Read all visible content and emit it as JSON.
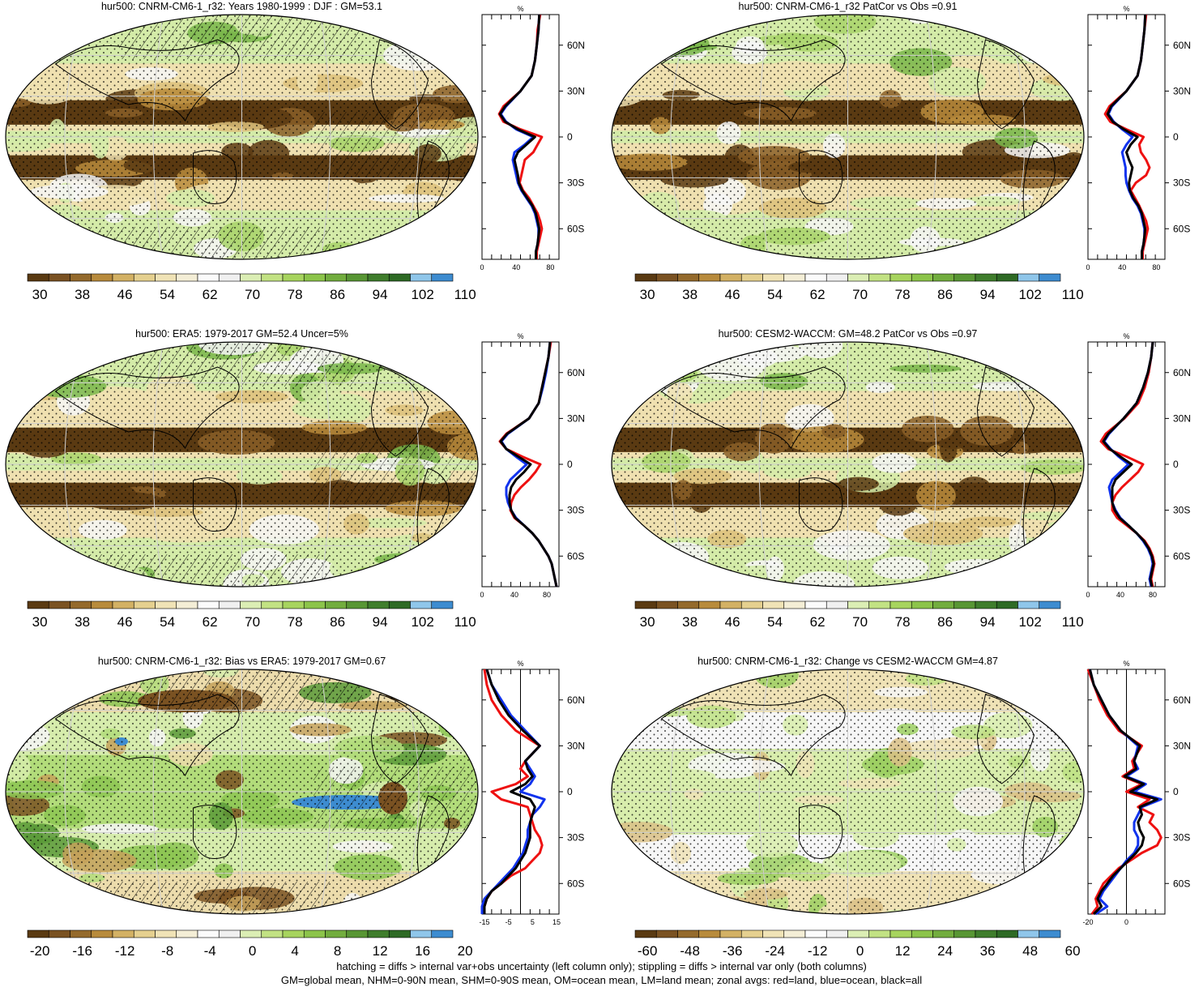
{
  "figure": {
    "footnote_line1": "hatching = diffs > internal var+obs uncertainty (left column only); stippling = diffs > internal var only (both columns)",
    "footnote_line2": "GM=global mean, NHM=0-90N mean, SHM=0-90S mean, OM=ocean mean, LM=land mean; zonal avgs: red=land, blue=ocean, black=all",
    "zonal_colors": {
      "land": "#ee1111",
      "ocean": "#1133ee",
      "all": "#000000"
    }
  },
  "chart_data": [
    {
      "type": "heatmap",
      "title": "hur500: CNRM-CM6-1_r32: Years 1980-1999 : DJF : GM=53.1",
      "colorbar": {
        "ticks": [
          "30",
          "38",
          "46",
          "54",
          "62",
          "70",
          "78",
          "86",
          "94",
          "102",
          "110"
        ],
        "colors": [
          "#5a3a12",
          "#7a5222",
          "#946a2c",
          "#b88b3c",
          "#d3b164",
          "#e5d08f",
          "#f0e3b6",
          "#f4eed6",
          "#fbfbfb",
          "#f0f0f0",
          "#dbeeb4",
          "#c2e283",
          "#a7d45e",
          "#8cc44a",
          "#72ad3e",
          "#589634",
          "#3f7d2c",
          "#2e6a25",
          "#8fc6ea",
          "#3d8cd0"
        ]
      },
      "zonal": {
        "unit": "%",
        "xticks": [
          "0",
          "40",
          "80"
        ],
        "xlim": [
          0,
          90
        ],
        "yticks": [
          "60N",
          "30N",
          "0",
          "30S",
          "60S"
        ],
        "ref_line": false,
        "lat": [
          80,
          70,
          60,
          50,
          40,
          30,
          20,
          15,
          10,
          5,
          0,
          -5,
          -10,
          -15,
          -20,
          -25,
          -30,
          -35,
          -40,
          -45,
          -50,
          -55,
          -60,
          -65,
          -70,
          -75,
          -80
        ],
        "land": [
          68,
          65,
          64,
          62,
          58,
          45,
          25,
          20,
          25,
          45,
          70,
          65,
          60,
          50,
          48,
          46,
          44,
          48,
          55,
          60,
          65,
          68,
          70,
          68,
          66,
          64,
          64
        ],
        "ocean": [
          67,
          66,
          64,
          62,
          58,
          45,
          28,
          22,
          28,
          40,
          60,
          50,
          38,
          36,
          38,
          40,
          42,
          46,
          52,
          58,
          62,
          64,
          66,
          66,
          65,
          63,
          63
        ],
        "all": [
          67,
          66,
          64,
          62,
          58,
          45,
          27,
          21,
          27,
          42,
          62,
          52,
          42,
          38,
          40,
          42,
          43,
          47,
          53,
          59,
          63,
          65,
          67,
          66,
          65,
          63,
          63
        ]
      }
    },
    {
      "type": "heatmap",
      "title": "hur500: CNRM-CM6-1_r32 PatCor vs Obs =0.91",
      "colorbar": {
        "ticks": [
          "30",
          "38",
          "46",
          "54",
          "62",
          "70",
          "78",
          "86",
          "94",
          "102",
          "110"
        ],
        "colors": [
          "#5a3a12",
          "#7a5222",
          "#946a2c",
          "#b88b3c",
          "#d3b164",
          "#e5d08f",
          "#f0e3b6",
          "#f4eed6",
          "#fbfbfb",
          "#f0f0f0",
          "#dbeeb4",
          "#c2e283",
          "#a7d45e",
          "#8cc44a",
          "#72ad3e",
          "#589634",
          "#3f7d2c",
          "#2e6a25",
          "#8fc6ea",
          "#3d8cd0"
        ]
      },
      "zonal": {
        "unit": "%",
        "xticks": [
          "0",
          "40",
          "80"
        ],
        "xlim": [
          0,
          90
        ],
        "yticks": [
          "60N",
          "30N",
          "0",
          "30S",
          "60S"
        ],
        "ref_line": false,
        "lat": [
          80,
          70,
          60,
          50,
          40,
          30,
          20,
          15,
          10,
          5,
          0,
          -5,
          -10,
          -15,
          -20,
          -25,
          -30,
          -35,
          -40,
          -45,
          -50,
          -55,
          -60,
          -65,
          -70,
          -75,
          -80
        ],
        "land": [
          68,
          66,
          64,
          62,
          58,
          45,
          25,
          20,
          26,
          45,
          65,
          60,
          62,
          68,
          72,
          68,
          56,
          50,
          55,
          60,
          64,
          68,
          70,
          68,
          66,
          64,
          64
        ],
        "ocean": [
          67,
          66,
          64,
          62,
          58,
          45,
          28,
          24,
          30,
          40,
          52,
          45,
          40,
          42,
          44,
          44,
          45,
          48,
          52,
          58,
          62,
          64,
          66,
          66,
          65,
          63,
          63
        ],
        "all": [
          67,
          66,
          64,
          62,
          58,
          45,
          27,
          23,
          29,
          42,
          58,
          50,
          45,
          48,
          52,
          50,
          48,
          49,
          53,
          59,
          63,
          65,
          67,
          66,
          65,
          63,
          63
        ]
      }
    },
    {
      "type": "heatmap",
      "title": "hur500: ERA5: 1979-2017 GM=52.4 Uncer=5%",
      "colorbar": {
        "ticks": [
          "30",
          "38",
          "46",
          "54",
          "62",
          "70",
          "78",
          "86",
          "94",
          "102",
          "110"
        ],
        "colors": [
          "#5a3a12",
          "#7a5222",
          "#946a2c",
          "#b88b3c",
          "#d3b164",
          "#e5d08f",
          "#f0e3b6",
          "#f4eed6",
          "#fbfbfb",
          "#f0f0f0",
          "#dbeeb4",
          "#c2e283",
          "#a7d45e",
          "#8cc44a",
          "#72ad3e",
          "#589634",
          "#3f7d2c",
          "#2e6a25",
          "#8fc6ea",
          "#3d8cd0"
        ]
      },
      "zonal": {
        "unit": "%",
        "xticks": [
          "0",
          "40",
          "80"
        ],
        "xlim": [
          0,
          95
        ],
        "yticks": [
          "60N",
          "30N",
          "0",
          "30S",
          "60S"
        ],
        "ref_line": false,
        "lat": [
          80,
          70,
          60,
          50,
          40,
          30,
          20,
          15,
          10,
          5,
          0,
          -5,
          -10,
          -15,
          -20,
          -25,
          -30,
          -35,
          -40,
          -45,
          -50,
          -55,
          -60,
          -65,
          -70,
          -75,
          -80
        ],
        "land": [
          85,
          82,
          78,
          74,
          70,
          58,
          30,
          22,
          30,
          50,
          72,
          66,
          58,
          48,
          40,
          36,
          35,
          40,
          52,
          62,
          70,
          76,
          82,
          86,
          88,
          90,
          92
        ],
        "ocean": [
          84,
          82,
          79,
          75,
          70,
          58,
          32,
          24,
          30,
          42,
          55,
          45,
          35,
          30,
          30,
          32,
          36,
          42,
          52,
          62,
          70,
          76,
          82,
          86,
          88,
          90,
          92
        ],
        "all": [
          84,
          82,
          78,
          74,
          70,
          58,
          31,
          23,
          30,
          45,
          60,
          52,
          42,
          36,
          34,
          34,
          36,
          41,
          52,
          62,
          70,
          76,
          82,
          86,
          88,
          90,
          92
        ]
      }
    },
    {
      "type": "heatmap",
      "title": "hur500: CESM2-WACCM: GM=48.2 PatCor vs Obs =0.97",
      "colorbar": {
        "ticks": [
          "30",
          "38",
          "46",
          "54",
          "62",
          "70",
          "78",
          "86",
          "94",
          "102",
          "110"
        ],
        "colors": [
          "#5a3a12",
          "#7a5222",
          "#946a2c",
          "#b88b3c",
          "#d3b164",
          "#e5d08f",
          "#f0e3b6",
          "#f4eed6",
          "#fbfbfb",
          "#f0f0f0",
          "#dbeeb4",
          "#c2e283",
          "#a7d45e",
          "#8cc44a",
          "#72ad3e",
          "#589634",
          "#3f7d2c",
          "#2e6a25",
          "#8fc6ea",
          "#3d8cd0"
        ]
      },
      "zonal": {
        "unit": "%",
        "xticks": [
          "0",
          "40",
          "80"
        ],
        "xlim": [
          0,
          95
        ],
        "yticks": [
          "60N",
          "30N",
          "0",
          "30S",
          "60S"
        ],
        "ref_line": false,
        "lat": [
          80,
          70,
          60,
          50,
          40,
          30,
          20,
          15,
          10,
          5,
          0,
          -5,
          -10,
          -15,
          -20,
          -25,
          -30,
          -35,
          -40,
          -45,
          -50,
          -55,
          -60,
          -65,
          -70,
          -75,
          -80
        ],
        "land": [
          80,
          78,
          75,
          70,
          62,
          45,
          22,
          16,
          25,
          48,
          68,
          62,
          52,
          42,
          34,
          30,
          30,
          36,
          48,
          60,
          70,
          76,
          80,
          82,
          80,
          78,
          80
        ],
        "ocean": [
          80,
          78,
          74,
          68,
          60,
          44,
          26,
          20,
          28,
          38,
          50,
          40,
          30,
          26,
          28,
          30,
          34,
          40,
          50,
          60,
          68,
          74,
          78,
          80,
          78,
          76,
          78
        ],
        "all": [
          80,
          78,
          74,
          68,
          60,
          44,
          25,
          19,
          27,
          40,
          54,
          44,
          34,
          30,
          30,
          30,
          33,
          39,
          50,
          60,
          69,
          75,
          79,
          81,
          79,
          77,
          79
        ]
      }
    },
    {
      "type": "heatmap",
      "title": "hur500: CNRM-CM6-1_r32: Bias vs ERA5: 1979-2017 GM=0.67",
      "colorbar": {
        "ticks": [
          "-20",
          "-16",
          "-12",
          "-8",
          "-4",
          "0",
          "4",
          "8",
          "12",
          "16",
          "20"
        ],
        "colors": [
          "#5a3a12",
          "#7a5222",
          "#946a2c",
          "#b88b3c",
          "#d3b164",
          "#e5d08f",
          "#f0e3b6",
          "#f4eed6",
          "#fbfbfb",
          "#f0f0f0",
          "#dbeeb4",
          "#c2e283",
          "#a7d45e",
          "#8cc44a",
          "#72ad3e",
          "#589634",
          "#3f7d2c",
          "#2e6a25",
          "#8fc6ea",
          "#3d8cd0"
        ]
      },
      "zonal": {
        "unit": "%",
        "xticks": [
          "-15",
          "-5",
          "5",
          "15"
        ],
        "xlim": [
          -16,
          16
        ],
        "yticks": [
          "60N",
          "30N",
          "0",
          "30S",
          "60S"
        ],
        "ref_line": true,
        "lat": [
          80,
          70,
          60,
          50,
          40,
          30,
          20,
          15,
          10,
          5,
          0,
          -5,
          -10,
          -15,
          -20,
          -25,
          -30,
          -35,
          -40,
          -45,
          -50,
          -55,
          -60,
          -65,
          -70,
          -75,
          -80
        ],
        "land": [
          -15,
          -14,
          -12,
          -8,
          -2,
          8,
          2,
          0,
          3,
          -2,
          -12,
          -8,
          3,
          4,
          5,
          6,
          8,
          9,
          8,
          5,
          2,
          -4,
          -8,
          -12,
          -14,
          -15,
          -15
        ],
        "ocean": [
          -14,
          -12,
          -8,
          -4,
          2,
          8,
          2,
          4,
          6,
          4,
          0,
          10,
          8,
          5,
          4,
          3,
          3,
          2,
          1,
          -1,
          -3,
          -6,
          -9,
          -12,
          -15,
          -16,
          -16
        ],
        "all": [
          -14,
          -12,
          -9,
          -5,
          1,
          8,
          2,
          3,
          5,
          2,
          -4,
          4,
          6,
          5,
          4,
          4,
          4,
          3,
          2,
          0,
          -2,
          -5,
          -8,
          -12,
          -14,
          -15,
          -15
        ]
      }
    },
    {
      "type": "heatmap",
      "title": "hur500: CNRM-CM6-1_r32: Change vs CESM2-WACCM GM=4.87",
      "colorbar": {
        "ticks": [
          "-60",
          "-48",
          "-36",
          "-24",
          "-12",
          "0",
          "12",
          "24",
          "36",
          "48",
          "60"
        ],
        "colors": [
          "#5a3a12",
          "#7a5222",
          "#946a2c",
          "#b88b3c",
          "#d3b164",
          "#e5d08f",
          "#f0e3b6",
          "#f4eed6",
          "#fbfbfb",
          "#f0f0f0",
          "#dbeeb4",
          "#c2e283",
          "#a7d45e",
          "#8cc44a",
          "#72ad3e",
          "#589634",
          "#3f7d2c",
          "#2e6a25",
          "#8fc6ea",
          "#3d8cd0"
        ]
      },
      "zonal": {
        "unit": "%",
        "xticks": [
          "-20",
          "0"
        ],
        "xlim": [
          -20,
          20
        ],
        "yticks": [
          "60N",
          "30N",
          "0",
          "30S",
          "60S"
        ],
        "ref_line": true,
        "lat": [
          80,
          70,
          60,
          50,
          40,
          30,
          20,
          15,
          10,
          5,
          0,
          -5,
          -10,
          -15,
          -20,
          -25,
          -30,
          -35,
          -40,
          -45,
          -50,
          -55,
          -60,
          -65,
          -70,
          -75,
          -80
        ],
        "land": [
          -20,
          -17,
          -14,
          -10,
          -4,
          8,
          3,
          4,
          -2,
          8,
          0,
          12,
          6,
          14,
          12,
          16,
          18,
          16,
          8,
          2,
          -4,
          -8,
          -12,
          -14,
          -16,
          -15,
          -18
        ],
        "ocean": [
          -19,
          -17,
          -13,
          -9,
          -3,
          6,
          4,
          6,
          0,
          10,
          4,
          18,
          8,
          6,
          4,
          4,
          6,
          6,
          4,
          0,
          -3,
          -6,
          -9,
          -12,
          -14,
          -10,
          -16
        ],
        "all": [
          -19,
          -17,
          -13,
          -9,
          -3,
          7,
          4,
          5,
          -1,
          9,
          2,
          16,
          7,
          8,
          6,
          7,
          9,
          8,
          5,
          1,
          -3,
          -7,
          -10,
          -13,
          -15,
          -13,
          -17
        ]
      }
    }
  ]
}
